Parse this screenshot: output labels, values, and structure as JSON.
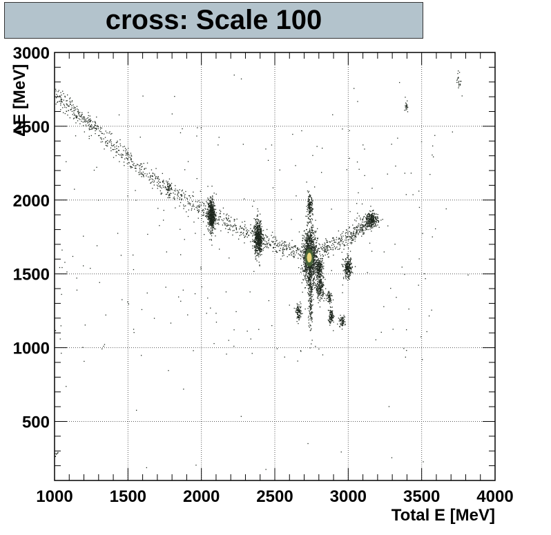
{
  "title": "cross: Scale 100",
  "chart_data": {
    "type": "scatter",
    "title": "cross: Scale 100",
    "xlabel": "Total E [MeV]",
    "ylabel": "ΔE [MeV]",
    "xlim": [
      1000,
      4000
    ],
    "ylim": [
      100,
      3000
    ],
    "x_ticks": [
      1000,
      1500,
      2000,
      2500,
      3000,
      3500,
      4000
    ],
    "y_ticks": [
      500,
      1000,
      1500,
      2000,
      2500,
      3000
    ],
    "grid": true,
    "clusters": [
      {
        "x": 2065,
        "y": 1900,
        "sx": 12,
        "sy": 55,
        "n": 500
      },
      {
        "x": 2385,
        "y": 1745,
        "sx": 14,
        "sy": 60,
        "n": 550
      },
      {
        "x": 2735,
        "y": 1620,
        "sx": 22,
        "sy": 90,
        "n": 1100
      },
      {
        "x": 2735,
        "y": 1950,
        "sx": 10,
        "sy": 40,
        "n": 150
      },
      {
        "x": 2800,
        "y": 1545,
        "sx": 14,
        "sy": 35,
        "n": 220
      },
      {
        "x": 2805,
        "y": 1405,
        "sx": 14,
        "sy": 35,
        "n": 200
      },
      {
        "x": 2995,
        "y": 1540,
        "sx": 14,
        "sy": 35,
        "n": 220
      },
      {
        "x": 3160,
        "y": 1870,
        "sx": 20,
        "sy": 25,
        "n": 220
      },
      {
        "x": 2660,
        "y": 1240,
        "sx": 10,
        "sy": 25,
        "n": 90
      },
      {
        "x": 2880,
        "y": 1215,
        "sx": 10,
        "sy": 25,
        "n": 90
      },
      {
        "x": 2955,
        "y": 1180,
        "sx": 10,
        "sy": 18,
        "n": 70
      },
      {
        "x": 2870,
        "y": 1350,
        "sx": 9,
        "sy": 20,
        "n": 60
      },
      {
        "x": 1775,
        "y": 2090,
        "sx": 7,
        "sy": 35,
        "n": 40
      },
      {
        "x": 2740,
        "y": 1330,
        "sx": 8,
        "sy": 120,
        "n": 160
      },
      {
        "x": 3395,
        "y": 2640,
        "sx": 6,
        "sy": 20,
        "n": 20
      },
      {
        "x": 3750,
        "y": 2800,
        "sx": 6,
        "sy": 30,
        "n": 20
      },
      {
        "x": 1010,
        "y": 280,
        "sx": 5,
        "sy": 10,
        "n": 8
      }
    ],
    "bands": [
      {
        "points": [
          [
            1000,
            2720
          ],
          [
            1300,
            2450
          ],
          [
            1700,
            2120
          ],
          [
            2065,
            1900
          ],
          [
            2385,
            1745
          ],
          [
            2735,
            1620
          ],
          [
            3000,
            1750
          ],
          [
            3160,
            1870
          ]
        ],
        "n": 1300,
        "spread": 30
      }
    ],
    "core": {
      "x": 2735,
      "y": 1610
    },
    "colors": {
      "points": "#1d261d",
      "core": "#e8d67a",
      "grid": "#555555",
      "frame": "#000000",
      "title_bg": "#b3c3cc"
    }
  }
}
